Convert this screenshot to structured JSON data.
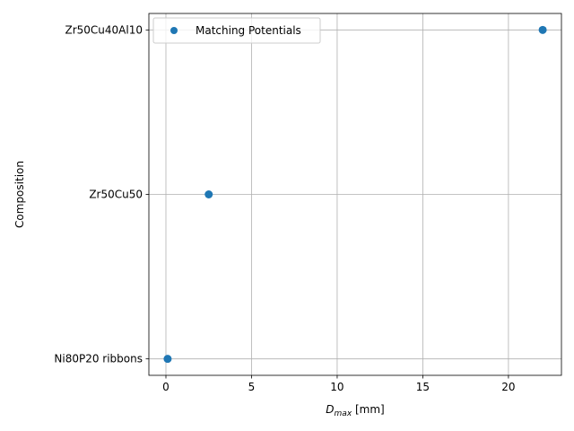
{
  "chart_data": {
    "type": "scatter",
    "title": "",
    "xlabel_main": "D",
    "xlabel_sub": "max",
    "xlabel_unit": " [mm]",
    "ylabel": "Composition",
    "categories": [
      "Ni80P20  ribbons",
      "Zr50Cu50",
      "Zr50Cu40Al10"
    ],
    "series": [
      {
        "name": "Matching Potentials",
        "color": "#1f77b4",
        "points": [
          {
            "x": 0.1,
            "y": "Ni80P20  ribbons"
          },
          {
            "x": 2.5,
            "y": "Zr50Cu50"
          },
          {
            "x": 22.0,
            "y": "Zr50Cu40Al10"
          }
        ]
      }
    ],
    "xlim": [
      -0.995,
      23.095
    ],
    "xticks": [
      0,
      5,
      10,
      15,
      20
    ],
    "xtick_labels": [
      "0",
      "5",
      "10",
      "15",
      "20"
    ],
    "grid": true,
    "legend_location": "upper left"
  }
}
